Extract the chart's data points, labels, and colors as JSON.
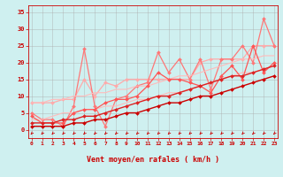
{
  "background_color": "#cff0f0",
  "grid_color": "#aaaaaa",
  "xlabel": "Vent moyen/en rafales ( km/h )",
  "ylabel_ticks": [
    0,
    5,
    10,
    15,
    20,
    25,
    30,
    35
  ],
  "xlim": [
    -0.3,
    23.3
  ],
  "ylim": [
    -2.5,
    37
  ],
  "xticks": [
    0,
    1,
    2,
    3,
    4,
    5,
    6,
    7,
    8,
    9,
    10,
    11,
    12,
    13,
    14,
    15,
    16,
    17,
    18,
    19,
    20,
    21,
    22,
    23
  ],
  "series": [
    {
      "color": "#ffaaaa",
      "linewidth": 0.9,
      "marker": "D",
      "markersize": 2.0,
      "y": [
        8,
        8,
        8,
        9,
        9,
        15,
        10,
        14,
        13,
        15,
        15,
        15,
        15,
        15,
        15,
        15,
        20,
        21,
        21,
        21,
        21,
        25,
        25,
        25
      ]
    },
    {
      "color": "#ff7777",
      "linewidth": 0.9,
      "marker": "D",
      "markersize": 2.0,
      "y": [
        5,
        3,
        3,
        1,
        7,
        24,
        7,
        1,
        9,
        10,
        13,
        14,
        23,
        17,
        21,
        15,
        21,
        12,
        21,
        21,
        25,
        20,
        33,
        25
      ]
    },
    {
      "color": "#ffbbbb",
      "linewidth": 0.8,
      "marker": null,
      "markersize": 0,
      "y": [
        8,
        8,
        9,
        9,
        10,
        10,
        11,
        11,
        12,
        12,
        13,
        13,
        14,
        15,
        16,
        16,
        17,
        18,
        19,
        20,
        21,
        21,
        22,
        22
      ]
    },
    {
      "color": "#ffbbbb",
      "linewidth": 0.8,
      "marker": null,
      "markersize": 0,
      "y": [
        3,
        3,
        4,
        5,
        5,
        6,
        6,
        7,
        7,
        8,
        9,
        9,
        10,
        11,
        11,
        12,
        13,
        14,
        15,
        16,
        17,
        17,
        18,
        19
      ]
    },
    {
      "color": "#ff5555",
      "linewidth": 0.9,
      "marker": "D",
      "markersize": 2.0,
      "y": [
        4,
        2,
        2,
        2,
        5,
        6,
        6,
        8,
        9,
        9,
        10,
        13,
        17,
        15,
        15,
        14,
        13,
        11,
        16,
        19,
        15,
        25,
        17,
        20
      ]
    },
    {
      "color": "#cc0000",
      "linewidth": 1.0,
      "marker": "D",
      "markersize": 2.0,
      "y": [
        1,
        1,
        1,
        1,
        2,
        2,
        3,
        3,
        4,
        5,
        5,
        6,
        7,
        8,
        8,
        9,
        10,
        10,
        11,
        12,
        13,
        14,
        15,
        16
      ]
    },
    {
      "color": "#dd2222",
      "linewidth": 1.0,
      "marker": "D",
      "markersize": 2.0,
      "y": [
        2,
        2,
        2,
        3,
        3,
        4,
        4,
        5,
        6,
        7,
        8,
        9,
        10,
        10,
        11,
        12,
        13,
        14,
        15,
        16,
        16,
        17,
        18,
        19
      ]
    }
  ],
  "arrow_color": "#cc0000",
  "xlabel_color": "#cc0000",
  "tick_color": "#cc0000",
  "spine_color": "#cc0000"
}
